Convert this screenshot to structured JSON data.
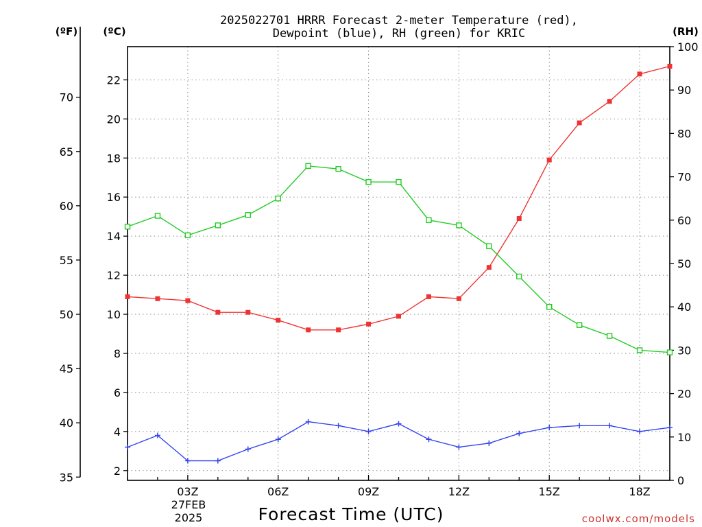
{
  "chart_data": {
    "type": "line",
    "title": "2025022701 HRRR Forecast 2-meter Temperature (red),",
    "subtitle": "Dewpoint (blue), RH (green) for KRIC",
    "xlabel": "Forecast Time (UTC)",
    "units": {
      "fahrenheit": "(ºF)",
      "celsius": "(ºC)",
      "rh": "(RH)"
    },
    "x_hours": [
      1,
      2,
      3,
      4,
      5,
      6,
      7,
      8,
      9,
      10,
      11,
      12,
      13,
      14,
      15,
      16,
      17,
      18,
      19
    ],
    "xlim": [
      1,
      19
    ],
    "x_ticks": [
      {
        "hour": 3,
        "label": "03Z"
      },
      {
        "hour": 6,
        "label": "06Z"
      },
      {
        "hour": 9,
        "label": "09Z"
      },
      {
        "hour": 12,
        "label": "12Z"
      },
      {
        "hour": 15,
        "label": "15Z"
      },
      {
        "hour": 18,
        "label": "18Z"
      }
    ],
    "x_date_label": "27FEB",
    "x_year_label": "2025",
    "ylim_celsius": [
      1.5,
      23.7
    ],
    "y_celsius_ticks": [
      2,
      4,
      6,
      8,
      10,
      12,
      14,
      16,
      18,
      20,
      22
    ],
    "y_fahrenheit_ticks": [
      35,
      40,
      45,
      50,
      55,
      60,
      65,
      70
    ],
    "ylim_rh": [
      0,
      100
    ],
    "y_rh_ticks": [
      0,
      10,
      20,
      30,
      40,
      50,
      60,
      70,
      80,
      90,
      100
    ],
    "series": [
      {
        "key": "temperature",
        "axis": "celsius",
        "color": "#ee3333",
        "marker": "filled-square",
        "values": [
          10.9,
          10.8,
          10.7,
          10.1,
          10.1,
          9.7,
          9.2,
          9.2,
          9.5,
          9.9,
          10.9,
          10.8,
          12.4,
          14.9,
          17.9,
          19.8,
          20.9,
          22.3,
          22.7
        ]
      },
      {
        "key": "dewpoint",
        "axis": "celsius",
        "color": "#3344ee",
        "marker": "plus",
        "values": [
          3.2,
          3.8,
          2.5,
          2.5,
          3.1,
          3.6,
          4.5,
          4.3,
          4.0,
          4.4,
          3.6,
          3.2,
          3.4,
          3.9,
          4.2,
          4.3,
          4.3,
          4.0,
          4.2
        ]
      },
      {
        "key": "rh",
        "axis": "rh",
        "color": "#22cc22",
        "marker": "open-square",
        "values": [
          58.5,
          61.0,
          56.5,
          58.8,
          61.2,
          65.0,
          72.5,
          71.8,
          68.8,
          68.8,
          60.0,
          58.8,
          54.0,
          47.0,
          40.0,
          35.8,
          33.3,
          30.0,
          29.5
        ]
      }
    ],
    "grid": true,
    "legend": "none",
    "watermark": "coolwx.com/models"
  }
}
